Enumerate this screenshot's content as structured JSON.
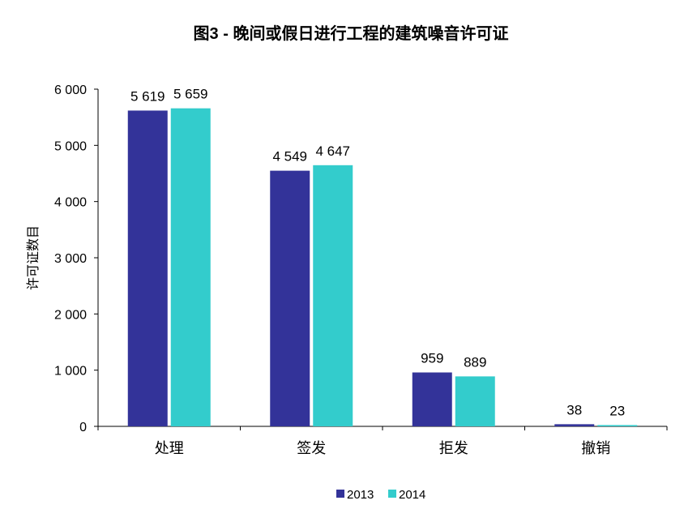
{
  "chart_data": {
    "type": "bar",
    "title": "图3 - 晚间或假日进行工程的建筑噪音许可证",
    "xlabel": "",
    "ylabel": "许可证数目",
    "categories": [
      "处理",
      "签发",
      "拒发",
      "撤销"
    ],
    "series": [
      {
        "name": "2013",
        "color": "#333399",
        "values": [
          5619,
          4549,
          959,
          38
        ],
        "labels": [
          "5 619",
          "4 549",
          "959",
          "38"
        ]
      },
      {
        "name": "2014",
        "color": "#33CCCC",
        "values": [
          5659,
          4647,
          889,
          23
        ],
        "labels": [
          "5 659",
          "4 647",
          "889",
          "23"
        ]
      }
    ],
    "ylim": [
      0,
      6000
    ],
    "yticks": [
      0,
      1000,
      2000,
      3000,
      4000,
      5000,
      6000
    ],
    "ytick_labels": [
      "0",
      "1 000",
      "2 000",
      "3 000",
      "4 000",
      "5 000",
      "6 000"
    ],
    "grid": false,
    "legend_position": "bottom"
  }
}
